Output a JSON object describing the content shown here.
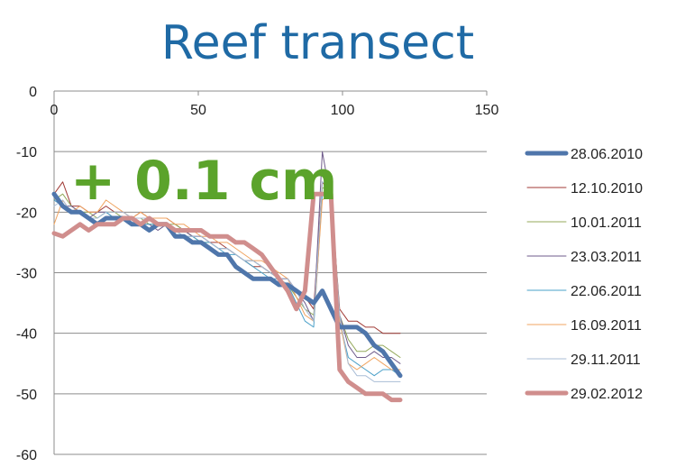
{
  "chart_data": {
    "type": "line",
    "title": "Reef transect",
    "annotation": "+ 0.1 cm",
    "xlim": [
      0,
      150
    ],
    "ylim": [
      -60,
      0
    ],
    "xticks": [
      "0",
      "50",
      "100",
      "150"
    ],
    "yticks": [
      "0",
      "-10",
      "-20",
      "-30",
      "-40",
      "-50",
      "-60"
    ],
    "grid": "horizontal",
    "legend_position": "right",
    "series": [
      {
        "name": "28.06.2010",
        "color": "#4f76ab",
        "width": 5,
        "x": [
          0,
          3,
          6,
          9,
          12,
          15,
          18,
          21,
          24,
          27,
          30,
          33,
          36,
          39,
          42,
          45,
          48,
          51,
          54,
          57,
          60,
          63,
          66,
          69,
          72,
          75,
          78,
          81,
          84,
          87,
          90,
          93,
          96,
          99,
          102,
          105,
          108,
          111,
          114,
          117,
          120
        ],
        "y": [
          -17,
          -19,
          -20,
          -20,
          -21,
          -22,
          -21,
          -21,
          -21,
          -22,
          -22,
          -23,
          -22,
          -22,
          -24,
          -24,
          -25,
          -25,
          -26,
          -27,
          -27,
          -29,
          -30,
          -31,
          -31,
          -31,
          -32,
          -32,
          -33,
          -34,
          -35,
          -33,
          -36,
          -39,
          -39,
          -39,
          -40,
          -42,
          -43,
          -45,
          -47
        ]
      },
      {
        "name": "12.10.2010",
        "color": "#a03a35",
        "width": 1,
        "x": [
          0,
          3,
          6,
          9,
          12,
          15,
          18,
          21,
          24,
          27,
          30,
          33,
          36,
          39,
          42,
          45,
          48,
          51,
          54,
          57,
          60,
          63,
          66,
          69,
          72,
          75,
          78,
          81,
          84,
          87,
          90,
          93,
          96,
          99,
          102,
          105,
          108,
          111,
          114,
          117,
          120
        ],
        "y": [
          -17,
          -15,
          -19,
          -19,
          -20,
          -20,
          -19,
          -20,
          -20,
          -21,
          -20,
          -21,
          -21,
          -21,
          -22,
          -23,
          -24,
          -24,
          -25,
          -25,
          -26,
          -27,
          -28,
          -29,
          -29,
          -30,
          -31,
          -31,
          -33,
          -34,
          -36,
          -15,
          -17,
          -36,
          -38,
          -38,
          -39,
          -39,
          -40,
          -40,
          -40
        ]
      },
      {
        "name": "10.01.2011",
        "color": "#94a95b",
        "width": 1,
        "x": [
          0,
          3,
          6,
          9,
          12,
          15,
          18,
          21,
          24,
          27,
          30,
          33,
          36,
          39,
          42,
          45,
          48,
          51,
          54,
          57,
          60,
          63,
          66,
          69,
          72,
          75,
          78,
          81,
          84,
          87,
          90,
          93,
          96,
          99,
          102,
          105,
          108,
          111,
          114,
          117,
          120
        ],
        "y": [
          -18,
          -17,
          -19,
          -20,
          -20,
          -21,
          -20,
          -20,
          -21,
          -21,
          -21,
          -22,
          -22,
          -22,
          -22,
          -23,
          -24,
          -25,
          -25,
          -26,
          -26,
          -27,
          -28,
          -28,
          -29,
          -30,
          -31,
          -32,
          -34,
          -36,
          -37,
          -16,
          -16,
          -37,
          -41,
          -43,
          -43,
          -42,
          -42,
          -43,
          -44
        ]
      },
      {
        "name": "23.03.2011",
        "color": "#6f5b8b",
        "width": 1,
        "x": [
          0,
          3,
          6,
          9,
          12,
          15,
          18,
          21,
          24,
          27,
          30,
          33,
          36,
          39,
          42,
          45,
          48,
          51,
          54,
          57,
          60,
          63,
          66,
          69,
          72,
          75,
          78,
          81,
          84,
          87,
          90,
          93,
          96,
          99,
          102,
          105,
          108,
          111,
          114,
          117,
          120
        ],
        "y": [
          -18,
          -19,
          -19,
          -20,
          -21,
          -20,
          -20,
          -21,
          -21,
          -21,
          -22,
          -22,
          -23,
          -22,
          -23,
          -23,
          -24,
          -24,
          -25,
          -26,
          -26,
          -27,
          -28,
          -28,
          -29,
          -30,
          -31,
          -31,
          -33,
          -35,
          -38,
          -10,
          -18,
          -37,
          -42,
          -44,
          -44,
          -43,
          -44,
          -44,
          -45
        ]
      },
      {
        "name": "22.06.2011",
        "color": "#4aa0c8",
        "width": 1,
        "x": [
          0,
          3,
          6,
          9,
          12,
          15,
          18,
          21,
          24,
          27,
          30,
          33,
          36,
          39,
          42,
          45,
          48,
          51,
          54,
          57,
          60,
          63,
          66,
          69,
          72,
          75,
          78,
          81,
          84,
          87,
          90,
          93,
          96,
          99,
          102,
          105,
          108,
          111,
          114,
          117,
          120
        ],
        "y": [
          -18,
          -19,
          -20,
          -20,
          -21,
          -21,
          -20,
          -21,
          -21,
          -21,
          -22,
          -22,
          -22,
          -22,
          -23,
          -24,
          -24,
          -25,
          -25,
          -26,
          -27,
          -27,
          -28,
          -29,
          -30,
          -31,
          -31,
          -32,
          -35,
          -38,
          -39,
          -17,
          -17,
          -38,
          -44,
          -45,
          -46,
          -47,
          -46,
          -46,
          -47
        ]
      },
      {
        "name": "16.09.2011",
        "color": "#f0a460",
        "width": 1,
        "x": [
          0,
          3,
          6,
          9,
          12,
          15,
          18,
          21,
          24,
          27,
          30,
          33,
          36,
          39,
          42,
          45,
          48,
          51,
          54,
          57,
          60,
          63,
          66,
          69,
          72,
          75,
          78,
          81,
          84,
          87,
          90,
          93,
          96,
          99,
          102,
          105,
          108,
          111,
          114,
          117,
          120
        ],
        "y": [
          -22,
          -18,
          -20,
          -19,
          -20,
          -20,
          -18,
          -19,
          -20,
          -21,
          -20,
          -21,
          -21,
          -21,
          -22,
          -22,
          -23,
          -24,
          -24,
          -25,
          -25,
          -26,
          -27,
          -28,
          -28,
          -29,
          -30,
          -31,
          -34,
          -37,
          -38,
          -18,
          -17,
          -38,
          -45,
          -46,
          -45,
          -44,
          -45,
          -46,
          -46
        ]
      },
      {
        "name": "29.11.2011",
        "color": "#a9bdd6",
        "width": 1,
        "x": [
          0,
          3,
          6,
          9,
          12,
          15,
          18,
          21,
          24,
          27,
          30,
          33,
          36,
          39,
          42,
          45,
          48,
          51,
          54,
          57,
          60,
          63,
          66,
          69,
          72,
          75,
          78,
          81,
          84,
          87,
          90,
          93,
          96,
          99,
          102,
          105,
          108,
          111,
          114,
          117,
          120
        ],
        "y": [
          -19,
          -18,
          -20,
          -20,
          -21,
          -21,
          -20,
          -20,
          -20,
          -21,
          -21,
          -21,
          -22,
          -22,
          -23,
          -24,
          -24,
          -24,
          -25,
          -26,
          -26,
          -27,
          -28,
          -28,
          -29,
          -30,
          -31,
          -31,
          -33,
          -36,
          -38,
          -15,
          -16,
          -37,
          -45,
          -47,
          -47,
          -48,
          -48,
          -48,
          -48
        ]
      },
      {
        "name": "29.02.2012",
        "color": "#d08e8d",
        "width": 5,
        "x": [
          0,
          3,
          6,
          9,
          12,
          15,
          18,
          21,
          24,
          27,
          30,
          33,
          36,
          39,
          42,
          45,
          48,
          51,
          54,
          57,
          60,
          63,
          66,
          69,
          72,
          75,
          78,
          81,
          84,
          87,
          90,
          93,
          96,
          99,
          102,
          105,
          108,
          111,
          114,
          117,
          120
        ],
        "y": [
          -23.5,
          -24,
          -23,
          -22,
          -23,
          -22,
          -22,
          -22,
          -21,
          -21,
          -22,
          -21,
          -22,
          -22,
          -23,
          -23,
          -23,
          -23,
          -24,
          -24,
          -24,
          -25,
          -25,
          -26,
          -27,
          -29,
          -31,
          -33,
          -36,
          -33,
          -17,
          -17,
          -17,
          -46,
          -48,
          -49,
          -50,
          -50,
          -50,
          -51,
          -51
        ]
      }
    ]
  }
}
